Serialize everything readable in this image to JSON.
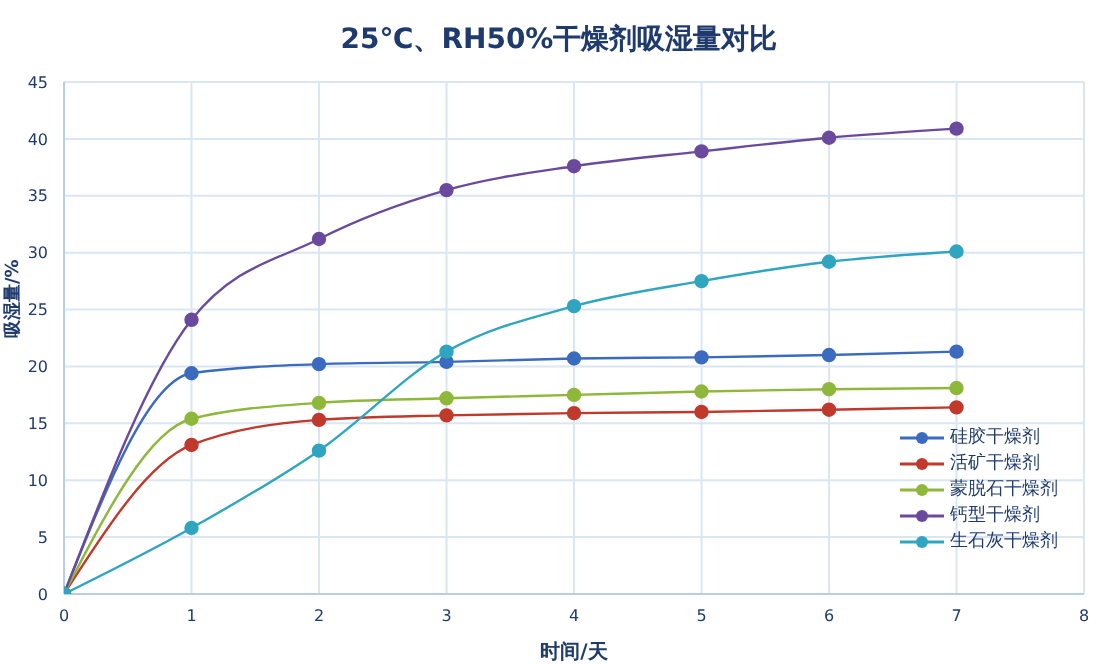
{
  "chart_data": {
    "type": "line",
    "title": "25℃、RH50%干燥剂吸湿量对比",
    "xlabel": "时间/天",
    "ylabel": "吸湿量/%",
    "x": [
      0,
      1,
      2,
      3,
      4,
      5,
      6,
      7
    ],
    "series": [
      {
        "name": "硅胶干燥剂",
        "color": "#3a6bbf",
        "values": [
          0,
          19.4,
          20.2,
          20.4,
          20.7,
          20.8,
          21.0,
          21.3
        ]
      },
      {
        "name": "活矿干燥剂",
        "color": "#c0392b",
        "values": [
          0,
          13.1,
          15.3,
          15.7,
          15.9,
          16.0,
          16.2,
          16.4
        ]
      },
      {
        "name": "蒙脱石干燥剂",
        "color": "#8db83a",
        "values": [
          0,
          15.4,
          16.8,
          17.2,
          17.5,
          17.8,
          18.0,
          18.1
        ]
      },
      {
        "name": "钙型干燥剂",
        "color": "#6a4a9c",
        "values": [
          0,
          24.1,
          31.2,
          35.5,
          37.6,
          38.9,
          40.1,
          40.9
        ]
      },
      {
        "name": "生石灰干燥剂",
        "color": "#2fa5c0",
        "values": [
          0,
          5.8,
          12.6,
          21.3,
          25.3,
          27.5,
          29.2,
          30.1
        ]
      }
    ],
    "xlim": [
      0,
      8
    ],
    "xticks": [
      0,
      1,
      2,
      3,
      4,
      5,
      6,
      7,
      8
    ],
    "ylim": [
      0,
      45
    ],
    "yticks": [
      0,
      5,
      10,
      15,
      20,
      25,
      30,
      35,
      40,
      45
    ],
    "grid": true,
    "legend": "bottom right",
    "marker": "circle",
    "line_style": "solid"
  }
}
